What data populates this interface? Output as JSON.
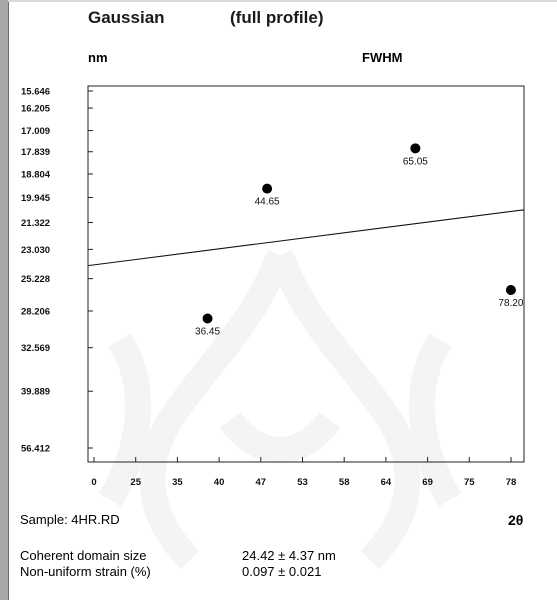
{
  "header": {
    "title": "Gaussian",
    "note": "(full profile)"
  },
  "chart_data": {
    "type": "scatter",
    "ylabel": "FWHM",
    "y_unit": "nm",
    "xlabel": "2θ",
    "xlim": [
      20,
      80
    ],
    "x_ticks": [
      "0",
      "25",
      "35",
      "40",
      "47",
      "53",
      "58",
      "64",
      "69",
      "75",
      "78"
    ],
    "y_ticks": [
      "15.646",
      "16.205",
      "17.009",
      "17.839",
      "18.804",
      "19.945",
      "21.322",
      "23.030",
      "25.228",
      "28.206",
      "32.569",
      "39.889",
      "56.412"
    ],
    "points": [
      {
        "x": 36.45,
        "y": 29.0,
        "label": "36.45"
      },
      {
        "x": 44.65,
        "y": 19.5,
        "label": "44.65"
      },
      {
        "x": 65.05,
        "y": 17.7,
        "label": "65.05"
      },
      {
        "x": 78.2,
        "y": 26.2,
        "label": "78.20"
      }
    ],
    "fit_line": {
      "x": [
        20,
        80
      ],
      "y": [
        24.2,
        20.6
      ]
    },
    "grid": false
  },
  "footer": {
    "sample": "Sample: 4HR.RD",
    "coherent_label": "Coherent domain size",
    "coherent_value": "24.42 ± 4.37 nm",
    "strain_label": "Non-uniform strain (%)",
    "strain_value": "0.097 ± 0.021"
  }
}
